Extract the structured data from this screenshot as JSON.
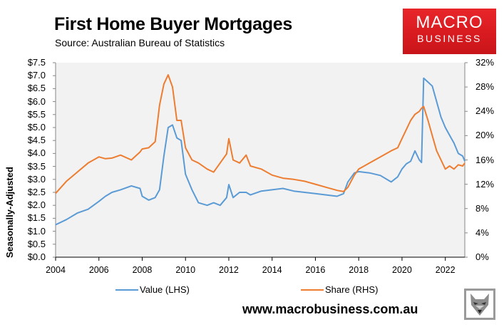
{
  "header": {
    "title": "First Home Buyer Mortgages",
    "subtitle": "Source: Australian Bureau of Statistics"
  },
  "logo": {
    "line1": "MACRO",
    "line2": "BUSINESS",
    "color": "#d71a1f"
  },
  "footer": {
    "url": "www.macrobusiness.com.au",
    "icon": "wolf-head-icon"
  },
  "axes": {
    "left_label": "Seasonally-Adjusted",
    "left_ticks": [
      "$0.0",
      "$0.5",
      "$1.0",
      "$1.5",
      "$2.0",
      "$2.5",
      "$3.0",
      "$3.5",
      "$4.0",
      "$4.5",
      "$5.0",
      "$5.5",
      "$6.0",
      "$6.5",
      "$7.0",
      "$7.5"
    ],
    "right_ticks": [
      "0%",
      "4%",
      "8%",
      "12%",
      "16%",
      "20%",
      "24%",
      "28%",
      "32%"
    ],
    "x_ticks": [
      "2004",
      "2006",
      "2008",
      "2010",
      "2012",
      "2014",
      "2016",
      "2018",
      "2020",
      "2022"
    ]
  },
  "legend": [
    {
      "label": "Value (LHS)",
      "color": "#5b9bd5"
    },
    {
      "label": "Share (RHS)",
      "color": "#ed7d31"
    }
  ],
  "chart_data": {
    "type": "line",
    "title": "First Home Buyer Mortgages",
    "subtitle": "Source: Australian Bureau of Statistics",
    "xlabel": "",
    "ylabel": "Seasonally-Adjusted",
    "ylabel_right": "",
    "ylim": [
      0,
      7.5
    ],
    "ylim_right": [
      0,
      32
    ],
    "xlim": [
      2004,
      2022.9
    ],
    "grid": false,
    "legend_position": "bottom",
    "x": [
      2004.0,
      2004.5,
      2005.0,
      2005.5,
      2006.0,
      2006.3,
      2006.6,
      2007.0,
      2007.5,
      2007.9,
      2008.0,
      2008.3,
      2008.6,
      2008.8,
      2009.0,
      2009.2,
      2009.4,
      2009.6,
      2009.8,
      2010.0,
      2010.3,
      2010.6,
      2011.0,
      2011.3,
      2011.6,
      2011.9,
      2012.0,
      2012.2,
      2012.5,
      2012.8,
      2013.0,
      2013.5,
      2014.0,
      2014.5,
      2015.0,
      2015.5,
      2016.0,
      2016.5,
      2017.0,
      2017.3,
      2017.5,
      2017.8,
      2018.0,
      2018.5,
      2019.0,
      2019.5,
      2019.8,
      2020.0,
      2020.2,
      2020.4,
      2020.6,
      2020.8,
      2020.9,
      2021.0,
      2021.2,
      2021.4,
      2021.6,
      2021.8,
      2022.0,
      2022.2,
      2022.4,
      2022.6,
      2022.8,
      2022.9
    ],
    "series": [
      {
        "name": "Value (LHS)",
        "axis": "left",
        "unit": "$bn",
        "color": "#5b9bd5",
        "values": [
          1.25,
          1.45,
          1.7,
          1.85,
          2.15,
          2.35,
          2.5,
          2.6,
          2.75,
          2.65,
          2.35,
          2.2,
          2.3,
          2.6,
          3.9,
          5.0,
          5.1,
          4.6,
          4.5,
          3.2,
          2.6,
          2.1,
          2.0,
          2.1,
          2.0,
          2.3,
          2.8,
          2.3,
          2.5,
          2.5,
          2.4,
          2.55,
          2.6,
          2.65,
          2.55,
          2.5,
          2.45,
          2.4,
          2.35,
          2.45,
          2.9,
          3.25,
          3.3,
          3.25,
          3.15,
          2.9,
          3.1,
          3.4,
          3.6,
          3.7,
          4.1,
          3.75,
          3.65,
          6.9,
          6.75,
          6.6,
          6.0,
          5.4,
          5.0,
          4.7,
          4.4,
          4.0,
          3.9,
          3.7
        ]
      },
      {
        "name": "Share (RHS)",
        "axis": "right",
        "unit": "%",
        "color": "#ed7d31",
        "values": [
          10.5,
          12.5,
          14.0,
          15.5,
          16.5,
          16.2,
          16.3,
          16.8,
          16.0,
          17.3,
          17.8,
          18.0,
          19.0,
          25.0,
          28.5,
          30.0,
          28.0,
          22.5,
          22.5,
          18.0,
          16.0,
          15.5,
          14.5,
          14.0,
          15.5,
          17.0,
          19.5,
          16.0,
          15.5,
          16.8,
          15.0,
          14.5,
          13.5,
          13.0,
          12.8,
          12.5,
          12.0,
          11.5,
          11.0,
          10.8,
          11.5,
          13.5,
          14.5,
          15.5,
          16.5,
          17.5,
          18.0,
          19.5,
          21.0,
          22.5,
          23.5,
          24.0,
          24.5,
          24.8,
          22.5,
          20.0,
          17.5,
          16.0,
          14.5,
          15.0,
          14.5,
          15.2,
          15.0,
          15.5
        ]
      }
    ]
  }
}
